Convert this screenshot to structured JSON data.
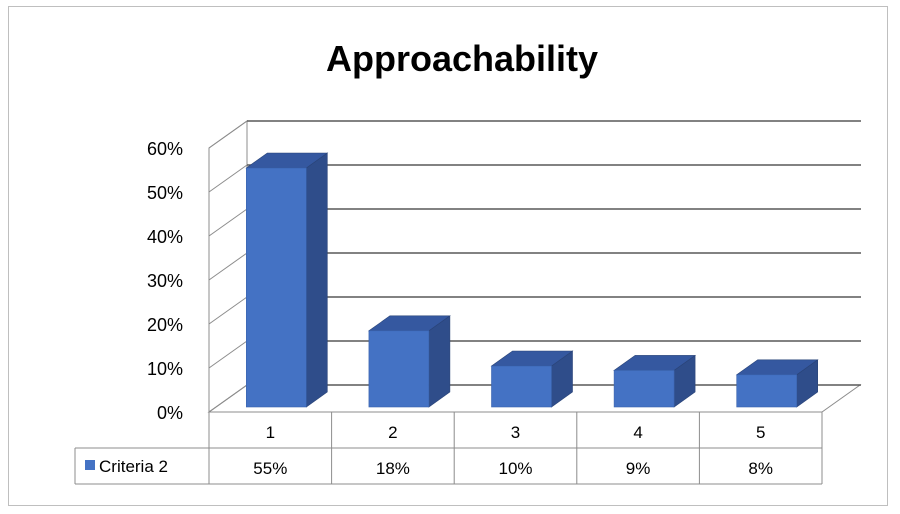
{
  "chart_data": {
    "type": "bar",
    "title": "Approachability",
    "categories": [
      "1",
      "2",
      "3",
      "4",
      "5"
    ],
    "series": [
      {
        "name": "Criteria 2",
        "values": [
          55,
          18,
          10,
          9,
          8
        ],
        "value_labels": [
          "55%",
          "18%",
          "10%",
          "9%",
          "8%"
        ],
        "color": "#4472c4"
      }
    ],
    "yticks": [
      "0%",
      "10%",
      "20%",
      "30%",
      "40%",
      "50%",
      "60%"
    ],
    "ylim": [
      0,
      60
    ],
    "grid": true,
    "style": "3d-column",
    "data_table": true
  }
}
